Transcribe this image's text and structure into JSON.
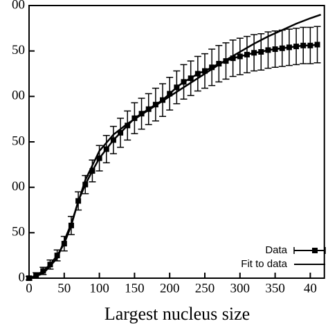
{
  "chart_data": {
    "type": "line",
    "xlabel": "Largest nucleus size",
    "xlim": [
      0,
      420
    ],
    "ylim": [
      0,
      300
    ],
    "xticks": [
      0,
      50,
      100,
      150,
      200,
      250,
      300,
      350,
      {
        "value": 400,
        "label": "40"
      }
    ],
    "yticks": [
      0,
      50,
      {
        "value": 100,
        "label": "00"
      },
      {
        "value": 150,
        "label": "50"
      },
      {
        "value": 200,
        "label": "00"
      },
      {
        "value": 250,
        "label": "50"
      },
      {
        "value": 300,
        "label": "00"
      }
    ],
    "series": [
      {
        "name": "Data",
        "color": "#000000",
        "x": [
          0,
          10,
          20,
          30,
          40,
          50,
          60,
          70,
          80,
          90,
          100,
          110,
          120,
          130,
          140,
          150,
          160,
          170,
          180,
          190,
          200,
          210,
          220,
          230,
          240,
          250,
          260,
          270,
          280,
          290,
          300,
          310,
          320,
          330,
          340,
          350,
          360,
          370,
          380,
          390,
          400,
          410
        ],
        "values": [
          0,
          3,
          8,
          15,
          25,
          38,
          58,
          85,
          103,
          118,
          132,
          142,
          152,
          160,
          168,
          176,
          181,
          186,
          191,
          196,
          203,
          210,
          216,
          220,
          225,
          228,
          232,
          236,
          239,
          242,
          244,
          246,
          248,
          249,
          251,
          252,
          253,
          254,
          255,
          256,
          256,
          257
        ],
        "errors": [
          2,
          3,
          4,
          5,
          6,
          8,
          10,
          10,
          10,
          12,
          14,
          15,
          15,
          16,
          16,
          17,
          17,
          17,
          18,
          18,
          18,
          18,
          19,
          19,
          19,
          19,
          20,
          20,
          20,
          20,
          20,
          20,
          20,
          20,
          20,
          20,
          20,
          20,
          20,
          20,
          20,
          20
        ]
      },
      {
        "name": "Fit to data",
        "color": "#000000",
        "x": [
          0,
          20,
          40,
          60,
          80,
          100,
          120,
          140,
          160,
          180,
          200,
          220,
          240,
          260,
          280,
          300,
          320,
          340,
          360,
          380,
          400,
          415
        ],
        "values": [
          0,
          5,
          22,
          60,
          108,
          140,
          158,
          170,
          180,
          190,
          200,
          210,
          220,
          230,
          240,
          249,
          258,
          266,
          273,
          280,
          286,
          290
        ]
      }
    ],
    "legend": "lower right"
  }
}
